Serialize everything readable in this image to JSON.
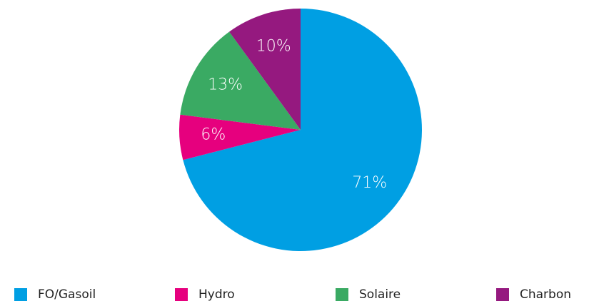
{
  "chart_data": {
    "type": "pie",
    "categories": [
      "FO/Gasoil",
      "Hydro",
      "Solaire",
      "Charbon"
    ],
    "values": [
      71,
      6,
      13,
      10
    ],
    "value_labels": [
      "71%",
      "6%",
      "13%",
      "10%"
    ],
    "colors": [
      "#009fe3",
      "#e6007e",
      "#3aaa63",
      "#95197f"
    ],
    "legend": "bottom"
  }
}
